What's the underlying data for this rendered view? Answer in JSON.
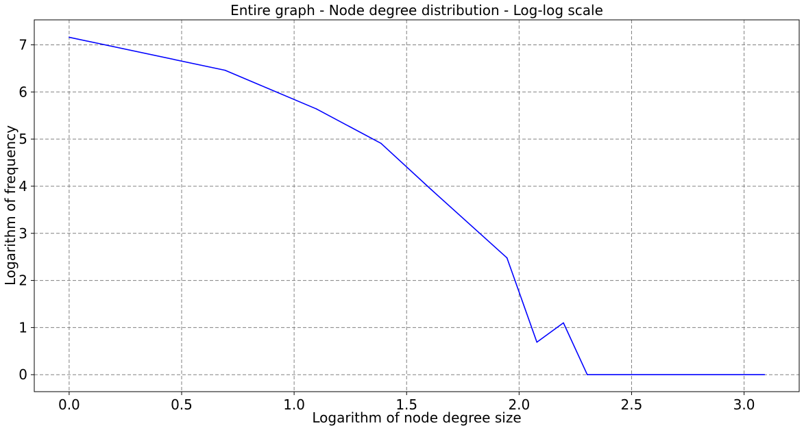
{
  "chart_data": {
    "type": "line",
    "title": "Entire graph - Node degree distribution - Log-log scale",
    "xlabel": "Logarithm of node degree size",
    "ylabel": "Logarithm of frequency",
    "xlim": [
      -0.155,
      3.245
    ],
    "ylim": [
      -0.36,
      7.53
    ],
    "xticks": [
      0.0,
      0.5,
      1.0,
      1.5,
      2.0,
      2.5,
      3.0
    ],
    "xtick_labels": [
      "0.0",
      "0.5",
      "1.0",
      "1.5",
      "2.0",
      "2.5",
      "3.0"
    ],
    "yticks": [
      0,
      1,
      2,
      3,
      4,
      5,
      6,
      7
    ],
    "ytick_labels": [
      "0",
      "1",
      "2",
      "3",
      "4",
      "5",
      "6",
      "7"
    ],
    "grid": true,
    "grid_style": "dashed",
    "series": [
      {
        "color": "#0000ff",
        "x": [
          0.0,
          0.693,
          1.099,
          1.386,
          1.609,
          1.946,
          2.079,
          2.197,
          2.303,
          3.091
        ],
        "y": [
          7.16,
          6.46,
          5.64,
          4.91,
          3.93,
          2.48,
          0.69,
          1.1,
          0.0,
          0.0
        ]
      }
    ],
    "colors": {
      "grid": "#808080",
      "axes": "#000000",
      "line": "#0000ff"
    }
  }
}
